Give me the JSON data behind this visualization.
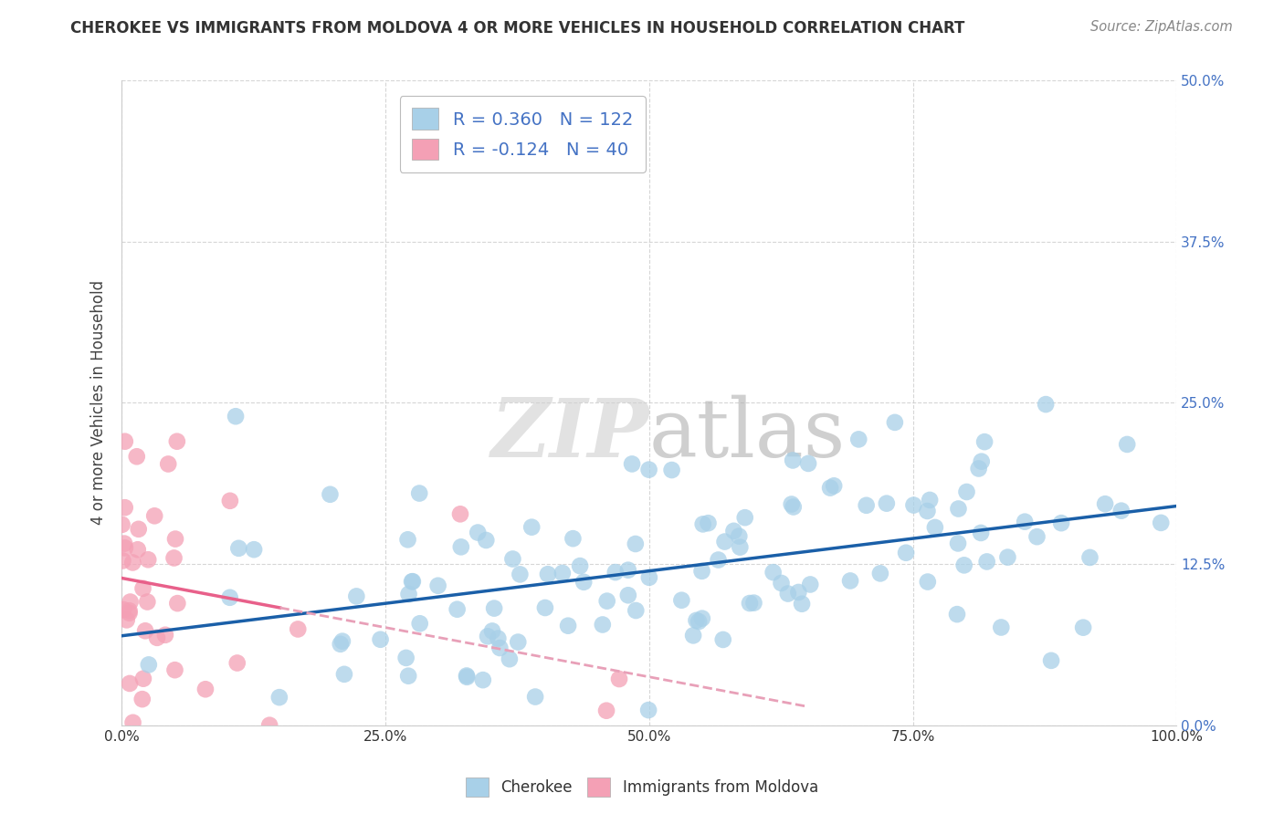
{
  "title": "CHEROKEE VS IMMIGRANTS FROM MOLDOVA 4 OR MORE VEHICLES IN HOUSEHOLD CORRELATION CHART",
  "source": "Source: ZipAtlas.com",
  "xlabel_vals": [
    0,
    25,
    50,
    75,
    100
  ],
  "ylabel_vals": [
    0,
    12.5,
    25,
    37.5,
    50
  ],
  "ylabel_label": "4 or more Vehicles in Household",
  "cherokee_R": 0.36,
  "cherokee_N": 122,
  "moldova_R": -0.124,
  "moldova_N": 40,
  "cherokee_color": "#a8d0e8",
  "moldova_color": "#f4a0b5",
  "cherokee_line_color": "#1a5fa8",
  "moldova_line_color": "#e8608a",
  "moldova_line_dashed_color": "#e8a0b8",
  "grid_color": "#cccccc",
  "watermark_color": "#d8d8d8",
  "background_color": "#ffffff",
  "tick_color": "#4472c4",
  "title_color": "#333333",
  "ylabel_text_color": "#444444"
}
